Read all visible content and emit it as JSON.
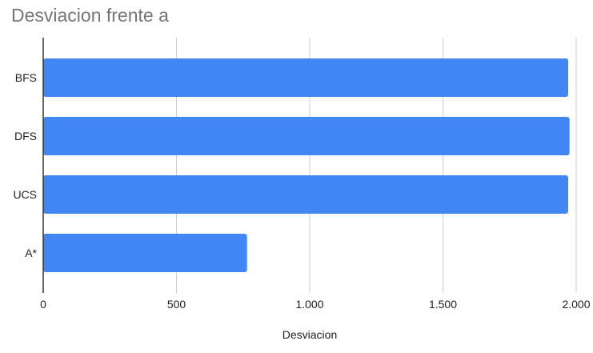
{
  "chart_data": {
    "type": "bar",
    "orientation": "horizontal",
    "title": "Desviacion frente a",
    "xlabel": "Desviacion",
    "ylabel": "",
    "categories": [
      "BFS",
      "DFS",
      "UCS",
      "A*"
    ],
    "values": [
      1970,
      1975,
      1970,
      765
    ],
    "xlim": [
      0,
      2000
    ],
    "x_ticks": [
      0,
      500,
      1000,
      1500,
      2000
    ],
    "x_tick_labels": [
      "0",
      "500",
      "1.000",
      "1.500",
      "2.000"
    ],
    "grid": "vertical",
    "legend": "none",
    "colors": {
      "bar": "#4285f4",
      "grid": "#cccccc",
      "axis": "#333333",
      "title": "#757575"
    }
  }
}
